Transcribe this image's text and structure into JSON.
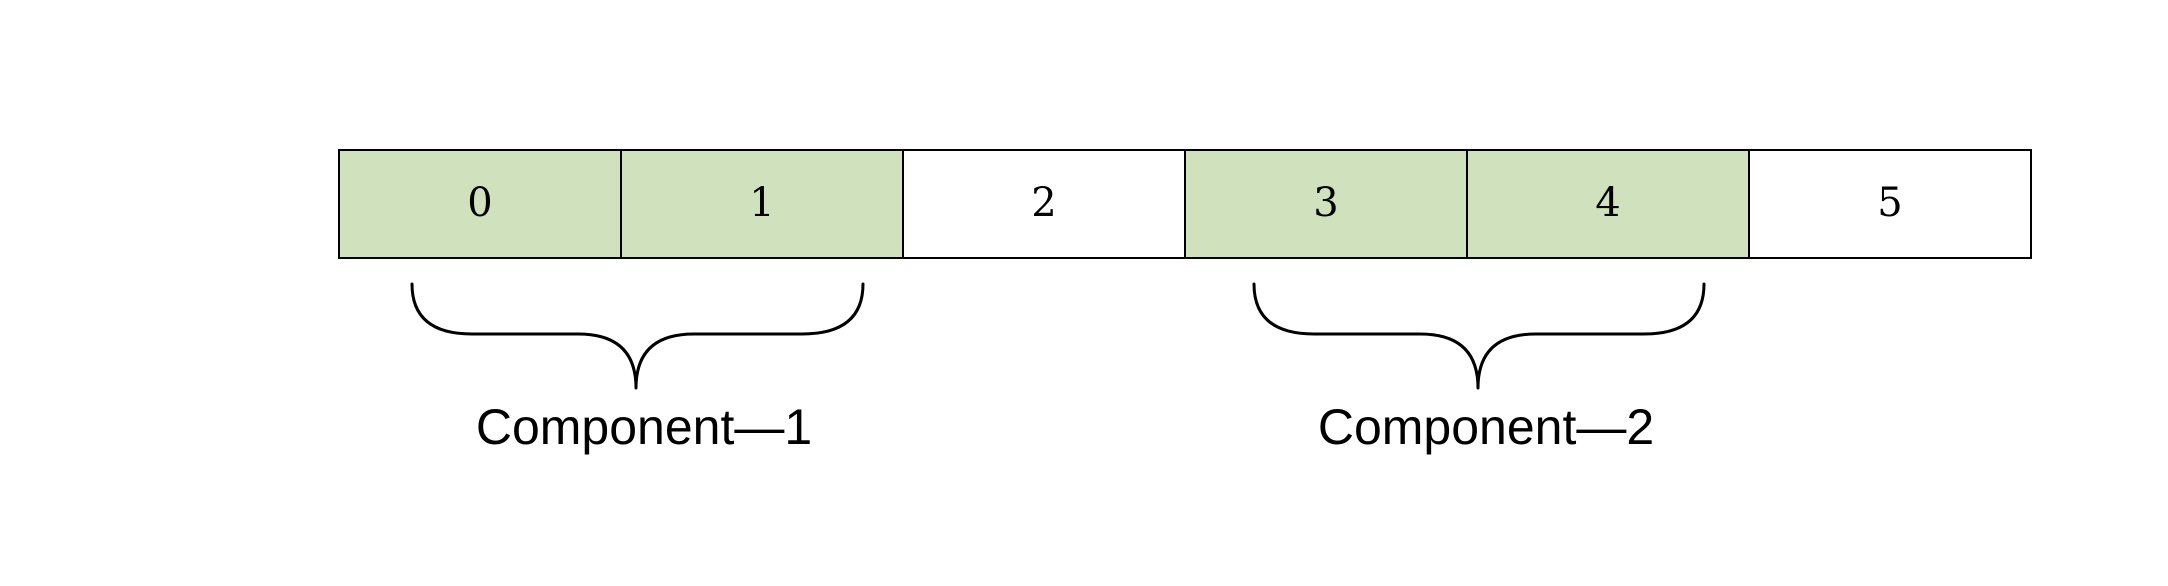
{
  "array": {
    "cells": [
      {
        "label": "0",
        "highlighted": true
      },
      {
        "label": "1",
        "highlighted": true
      },
      {
        "label": "2",
        "highlighted": false
      },
      {
        "label": "3",
        "highlighted": true
      },
      {
        "label": "4",
        "highlighted": true
      },
      {
        "label": "5",
        "highlighted": false
      }
    ],
    "highlight_color": "#cfe2bd",
    "plain_color": "#ffffff",
    "border_color": "#000000"
  },
  "components": [
    {
      "label": "Component—1",
      "spans_cells": [
        0,
        1
      ]
    },
    {
      "label": "Component—2",
      "spans_cells": [
        3,
        4
      ]
    }
  ]
}
